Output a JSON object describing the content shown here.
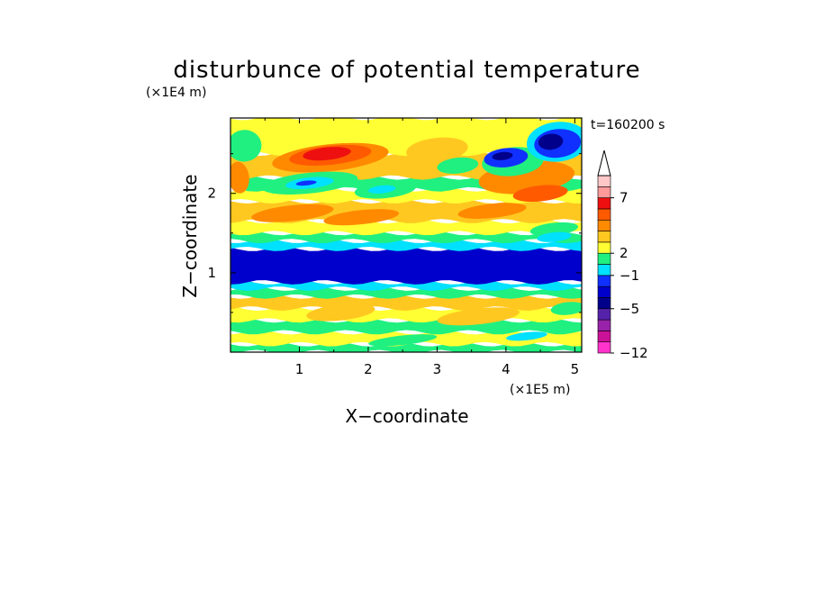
{
  "chart_data": {
    "type": "heatmap",
    "title": "disturbunce of potential temperature",
    "time_label": "t=160200 s",
    "xlabel": "X−coordinate",
    "ylabel": "Z−coordinate",
    "x_unit": "(×1E5 m)",
    "y_unit": "(×1E4 m)",
    "xlim": [
      0,
      5.1
    ],
    "ylim": [
      0,
      2.95
    ],
    "x_ticks": [
      1,
      2,
      3,
      4,
      5
    ],
    "x_tick_labels": [
      "1",
      "2",
      "3",
      "4",
      "5"
    ],
    "y_ticks": [
      1,
      2
    ],
    "y_tick_labels": [
      "1",
      "2"
    ],
    "colorbar": {
      "levels": [
        {
          "color": "#ff33cc"
        },
        {
          "color": "#cc1199"
        },
        {
          "color": "#9922aa"
        },
        {
          "color": "#5522aa"
        },
        {
          "color": "#00008b"
        },
        {
          "color": "#0000cd"
        },
        {
          "color": "#1030ff"
        },
        {
          "color": "#00e0ff"
        },
        {
          "color": "#20f080"
        },
        {
          "color": "#ffff33"
        },
        {
          "color": "#ffc820"
        },
        {
          "color": "#ff8a00"
        },
        {
          "color": "#ff5a00"
        },
        {
          "color": "#ee1010"
        },
        {
          "color": "#ff9a9a"
        },
        {
          "color": "#ffc8c8"
        }
      ],
      "tick_labels": [
        {
          "label": "7",
          "level": 14
        },
        {
          "label": "2",
          "level": 9
        },
        {
          "label": "−1",
          "level": 7
        },
        {
          "label": "−5",
          "level": 4
        },
        {
          "label": "−12",
          "level": 0
        }
      ],
      "extend": "max"
    },
    "field_bands": [
      {
        "z": [
          0.0,
          0.1
        ],
        "level": 8
      },
      {
        "z": [
          0.1,
          0.25
        ],
        "level": 9
      },
      {
        "z": [
          0.25,
          0.4
        ],
        "level": 8
      },
      {
        "z": [
          0.4,
          0.55
        ],
        "level": 9
      },
      {
        "z": [
          0.55,
          0.7
        ],
        "level": 10
      },
      {
        "z": [
          0.7,
          0.8
        ],
        "level": 8
      },
      {
        "z": [
          0.8,
          0.88
        ],
        "level": 7
      },
      {
        "z": [
          0.88,
          1.3
        ],
        "level": 5
      },
      {
        "z": [
          1.3,
          1.4
        ],
        "level": 7
      },
      {
        "z": [
          1.4,
          1.5
        ],
        "level": 8
      },
      {
        "z": [
          1.5,
          1.65
        ],
        "level": 9
      },
      {
        "z": [
          1.65,
          1.9
        ],
        "level": 10
      },
      {
        "z": [
          1.9,
          2.05
        ],
        "level": 9
      },
      {
        "z": [
          2.05,
          2.2
        ],
        "level": 8
      },
      {
        "z": [
          2.2,
          2.5
        ],
        "level": 10
      },
      {
        "z": [
          2.5,
          2.95
        ],
        "level": 9
      }
    ],
    "field_features": [
      {
        "x": 1.45,
        "z": 2.45,
        "rx": 0.85,
        "rz": 0.17,
        "level": 11
      },
      {
        "x": 1.45,
        "z": 2.48,
        "rx": 0.6,
        "rz": 0.12,
        "level": 12
      },
      {
        "x": 1.4,
        "z": 2.5,
        "rx": 0.35,
        "rz": 0.08,
        "level": 13
      },
      {
        "x": 1.15,
        "z": 2.13,
        "rx": 0.7,
        "rz": 0.13,
        "level": 8
      },
      {
        "x": 1.15,
        "z": 2.13,
        "rx": 0.35,
        "rz": 0.07,
        "level": 7
      },
      {
        "x": 1.1,
        "z": 2.13,
        "rx": 0.15,
        "rz": 0.03,
        "level": 6
      },
      {
        "x": 2.25,
        "z": 2.05,
        "rx": 0.45,
        "rz": 0.11,
        "level": 8
      },
      {
        "x": 2.2,
        "z": 2.05,
        "rx": 0.2,
        "rz": 0.05,
        "level": 7
      },
      {
        "x": 3.0,
        "z": 2.55,
        "rx": 0.45,
        "rz": 0.15,
        "level": 10
      },
      {
        "x": 3.3,
        "z": 2.35,
        "rx": 0.3,
        "rz": 0.1,
        "level": 8
      },
      {
        "x": 4.3,
        "z": 2.2,
        "rx": 0.7,
        "rz": 0.2,
        "level": 11
      },
      {
        "x": 4.5,
        "z": 2.0,
        "rx": 0.4,
        "rz": 0.1,
        "level": 12
      },
      {
        "x": 4.1,
        "z": 2.4,
        "rx": 0.45,
        "rz": 0.18,
        "level": 8
      },
      {
        "x": 4.0,
        "z": 2.45,
        "rx": 0.32,
        "rz": 0.12,
        "level": 6
      },
      {
        "x": 3.95,
        "z": 2.47,
        "rx": 0.15,
        "rz": 0.05,
        "level": 4
      },
      {
        "x": 4.75,
        "z": 2.65,
        "rx": 0.45,
        "rz": 0.25,
        "level": 7
      },
      {
        "x": 4.75,
        "z": 2.63,
        "rx": 0.34,
        "rz": 0.18,
        "level": 6
      },
      {
        "x": 4.65,
        "z": 2.65,
        "rx": 0.18,
        "rz": 0.1,
        "level": 4
      },
      {
        "x": 0.2,
        "z": 2.6,
        "rx": 0.25,
        "rz": 0.2,
        "level": 8
      },
      {
        "x": 0.12,
        "z": 2.2,
        "rx": 0.15,
        "rz": 0.2,
        "level": 11
      },
      {
        "x": 0.9,
        "z": 1.75,
        "rx": 0.6,
        "rz": 0.1,
        "level": 11
      },
      {
        "x": 1.9,
        "z": 1.7,
        "rx": 0.55,
        "rz": 0.09,
        "level": 11
      },
      {
        "x": 3.8,
        "z": 1.78,
        "rx": 0.5,
        "rz": 0.09,
        "level": 11
      },
      {
        "x": 4.7,
        "z": 1.55,
        "rx": 0.35,
        "rz": 0.08,
        "level": 8
      },
      {
        "x": 4.7,
        "z": 1.45,
        "rx": 0.25,
        "rz": 0.06,
        "level": 7
      },
      {
        "x": 1.6,
        "z": 0.5,
        "rx": 0.5,
        "rz": 0.1,
        "level": 10
      },
      {
        "x": 3.6,
        "z": 0.45,
        "rx": 0.6,
        "rz": 0.1,
        "level": 10
      },
      {
        "x": 2.5,
        "z": 0.15,
        "rx": 0.5,
        "rz": 0.06,
        "level": 8
      },
      {
        "x": 4.3,
        "z": 0.2,
        "rx": 0.3,
        "rz": 0.05,
        "level": 7
      },
      {
        "x": 0.5,
        "z": 0.3,
        "rx": 0.4,
        "rz": 0.05,
        "level": 8
      },
      {
        "x": 4.9,
        "z": 0.55,
        "rx": 0.25,
        "rz": 0.08,
        "level": 8
      }
    ]
  }
}
